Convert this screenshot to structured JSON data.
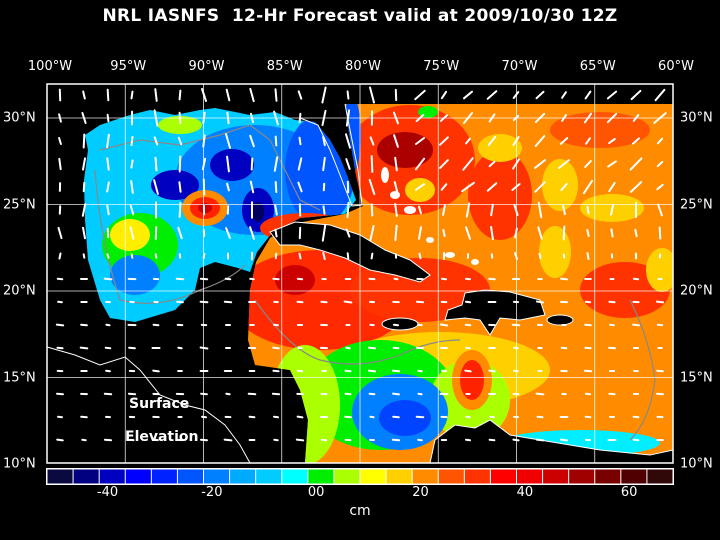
{
  "title": "NRL IASNFS  12-Hr Forecast valid at 2009/10/30 12Z",
  "map": {
    "longitude_labels": [
      "100°W",
      "95°W",
      "90°W",
      "85°W",
      "80°W",
      "75°W",
      "70°W",
      "65°W",
      "60°W"
    ],
    "latitude_labels": [
      "30°N",
      "25°N",
      "20°N",
      "15°N",
      "10°N"
    ],
    "annotation_line1": "Surface",
    "annotation_line2": "Elevation"
  },
  "colorbar": {
    "min": -50,
    "max": 70,
    "step": 5,
    "colors": [
      "#0a0a40",
      "#000080",
      "#0000c0",
      "#0000ff",
      "#0022ff",
      "#0055ff",
      "#0080ff",
      "#00aaff",
      "#00ccff",
      "#00ffff",
      "#00ee00",
      "#aaff00",
      "#ffff00",
      "#ffd000",
      "#ff8c00",
      "#ff5500",
      "#ff3300",
      "#ff0000",
      "#f00000",
      "#cc0000",
      "#a00000",
      "#780000",
      "#500000",
      "#300808"
    ],
    "labels": [
      {
        "value": -40,
        "text": "-40"
      },
      {
        "value": -20,
        "text": "-20"
      },
      {
        "value": 0,
        "text": "00"
      },
      {
        "value": 20,
        "text": "20"
      },
      {
        "value": 40,
        "text": "40"
      },
      {
        "value": 60,
        "text": "60"
      }
    ],
    "unit": "cm"
  }
}
